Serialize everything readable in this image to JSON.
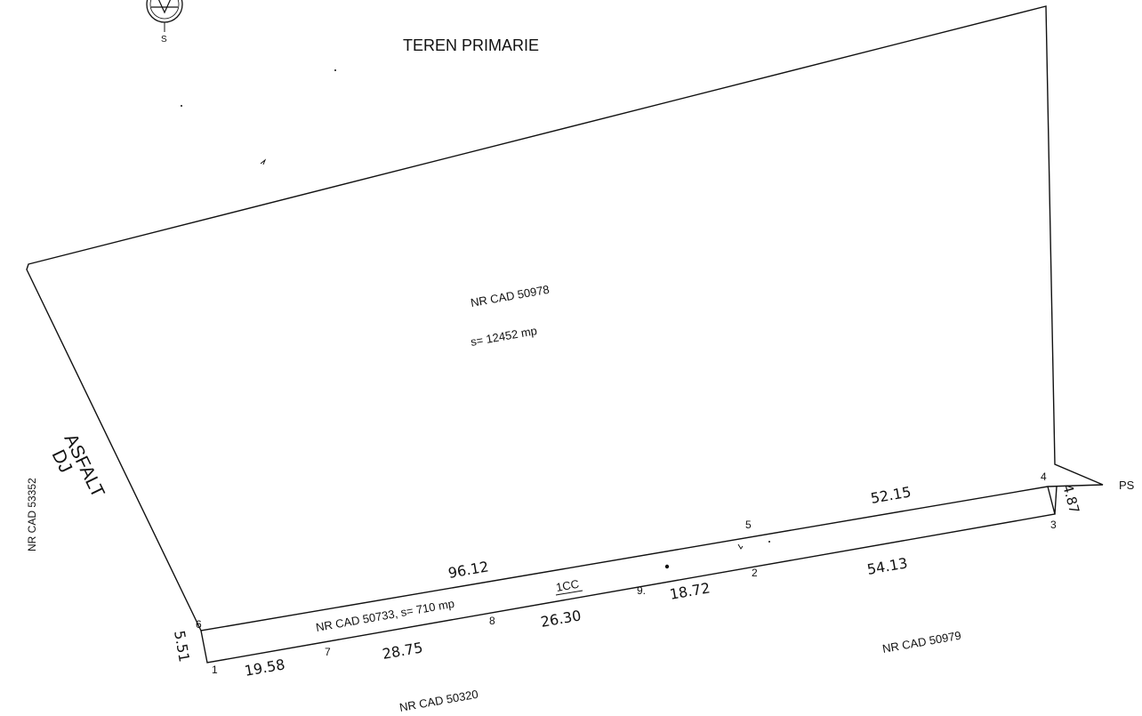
{
  "colors": {
    "ink": "#111111",
    "paper": "#ffffff"
  },
  "compass": {
    "icon": "compass-rose-icon",
    "south_label": "S"
  },
  "neighbors": {
    "north": "TEREN PRIMARIE",
    "west_road": [
      "ASFALT",
      "DJ"
    ],
    "west_parcel": "NR CAD 53352",
    "east": "PS",
    "south_west": "NR CAD 50320",
    "south_east": "NR CAD 50979"
  },
  "main_parcel": {
    "cad": "NR CAD 50978",
    "area": "s= 12452 mp"
  },
  "strip_parcel": {
    "label": "NR CAD 50733, s= 710 mp",
    "cc": "1CC"
  },
  "points": [
    "1",
    "2",
    "3",
    "4",
    "5",
    "6",
    "7",
    "8",
    "9."
  ],
  "dimensions": {
    "d_1_6": "5.51",
    "d_1_7": "19.58",
    "d_7_8": "28.75",
    "d_8_9": "26.30",
    "d_9_2": "18.72",
    "d_2_3": "54.13",
    "d_3_4": "4.87",
    "d_6_5": "96.12",
    "d_5_4": "52.15"
  }
}
